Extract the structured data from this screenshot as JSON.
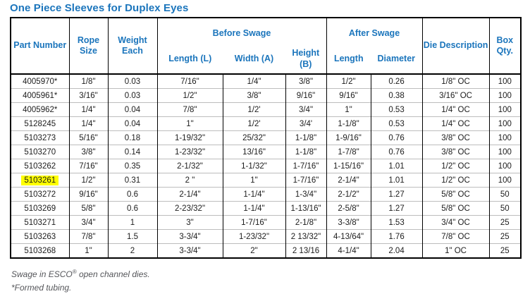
{
  "title": "One Piece Sleeves for Duplex Eyes",
  "table": {
    "headers": {
      "part_number": "Part Number",
      "rope_size": "Rope Size",
      "weight_each": "Weight Each",
      "before_swage_group": "Before Swage",
      "after_swage_group": "After Swage",
      "before_length": "Length (L)",
      "before_width": "Width (A)",
      "before_height": "Height (B)",
      "after_length": "Length",
      "after_diameter": "Diameter",
      "die_description": "Die Description",
      "box_qty": "Box Qty."
    },
    "rows": [
      {
        "part": "4005970*",
        "rope": "1/8\"",
        "weight": "0.03",
        "before_length": "7/16\"",
        "before_width": "1/4\"",
        "before_height": "3/8\"",
        "after_length": "1/2\"",
        "after_diameter": "0.26",
        "die": "1/8\" OC",
        "qty": "100",
        "highlight": false
      },
      {
        "part": "4005961*",
        "rope": "3/16\"",
        "weight": "0.03",
        "before_length": "1/2\"",
        "before_width": "3/8\"",
        "before_height": "9/16\"",
        "after_length": "9/16\"",
        "after_diameter": "0.38",
        "die": "3/16\" OC",
        "qty": "100",
        "highlight": false
      },
      {
        "part": "4005962*",
        "rope": "1/4\"",
        "weight": "0.04",
        "before_length": "7/8\"",
        "before_width": "1/2'",
        "before_height": "3/4\"",
        "after_length": "1\"",
        "after_diameter": "0.53",
        "die": "1/4\" OC",
        "qty": "100",
        "highlight": false
      },
      {
        "part": "5128245",
        "rope": "1/4\"",
        "weight": "0.04",
        "before_length": "1\"",
        "before_width": "1/2'",
        "before_height": "3/4'",
        "after_length": "1-1/8\"",
        "after_diameter": "0.53",
        "die": "1/4\" OC",
        "qty": "100",
        "highlight": false
      },
      {
        "part": "5103273",
        "rope": "5/16\"",
        "weight": "0.18",
        "before_length": "1-19/32\"",
        "before_width": "25/32\"",
        "before_height": "1-1/8\"",
        "after_length": "1-9/16\"",
        "after_diameter": "0.76",
        "die": "3/8\" OC",
        "qty": "100",
        "highlight": false
      },
      {
        "part": "5103270",
        "rope": "3/8\"",
        "weight": "0.14",
        "before_length": "1-23/32\"",
        "before_width": "13/16\"",
        "before_height": "1-1/8\"",
        "after_length": "1-7/8\"",
        "after_diameter": "0.76",
        "die": "3/8\" OC",
        "qty": "100",
        "highlight": false
      },
      {
        "part": "5103262",
        "rope": "7/16\"",
        "weight": "0.35",
        "before_length": "2-1/32\"",
        "before_width": "1-1/32\"",
        "before_height": "1-7/16\"",
        "after_length": "1-15/16\"",
        "after_diameter": "1.01",
        "die": "1/2\" OC",
        "qty": "100",
        "highlight": false
      },
      {
        "part": "5103261",
        "rope": "1/2\"",
        "weight": "0.31",
        "before_length": "2 \"",
        "before_width": "1\"",
        "before_height": "1-7/16\"",
        "after_length": "2-1/4\"",
        "after_diameter": "1.01",
        "die": "1/2\" OC",
        "qty": "100",
        "highlight": true
      },
      {
        "part": "5103272",
        "rope": "9/16\"",
        "weight": "0.6",
        "before_length": "2-1/4\"",
        "before_width": "1-1/4\"",
        "before_height": "1-3/4\"",
        "after_length": "2-1/2\"",
        "after_diameter": "1.27",
        "die": "5/8\" OC",
        "qty": "50",
        "highlight": false
      },
      {
        "part": "5103269",
        "rope": "5/8\"",
        "weight": "0.6",
        "before_length": "2-23/32\"",
        "before_width": "1-1/4\"",
        "before_height": "1-13/16\"",
        "after_length": "2-5/8\"",
        "after_diameter": "1.27",
        "die": "5/8\" OC",
        "qty": "50",
        "highlight": false
      },
      {
        "part": "5103271",
        "rope": "3/4\"",
        "weight": "1",
        "before_length": "3\"",
        "before_width": "1-7/16\"",
        "before_height": "2-1/8\"",
        "after_length": "3-3/8\"",
        "after_diameter": "1.53",
        "die": "3/4\" OC",
        "qty": "25",
        "highlight": false
      },
      {
        "part": "5103263",
        "rope": "7/8\"",
        "weight": "1.5",
        "before_length": "3-3/4\"",
        "before_width": "1-23/32\"",
        "before_height": "2 13/32\"",
        "after_length": "4-13/64\"",
        "after_diameter": "1.76",
        "die": "7/8\" OC",
        "qty": "25",
        "highlight": false
      },
      {
        "part": "5103268",
        "rope": "1\"",
        "weight": "2",
        "before_length": "3-3/4\"",
        "before_width": "2\"",
        "before_height": "2 13/16",
        "after_length": "4-1/4\"",
        "after_diameter": "2.04",
        "die": "1\" OC",
        "qty": "25",
        "highlight": false
      }
    ]
  },
  "footnotes": {
    "swage_pre": "Swage in ESCO",
    "swage_sup": "®",
    "swage_post": " open channel dies.",
    "formed": "*Formed tubing."
  }
}
